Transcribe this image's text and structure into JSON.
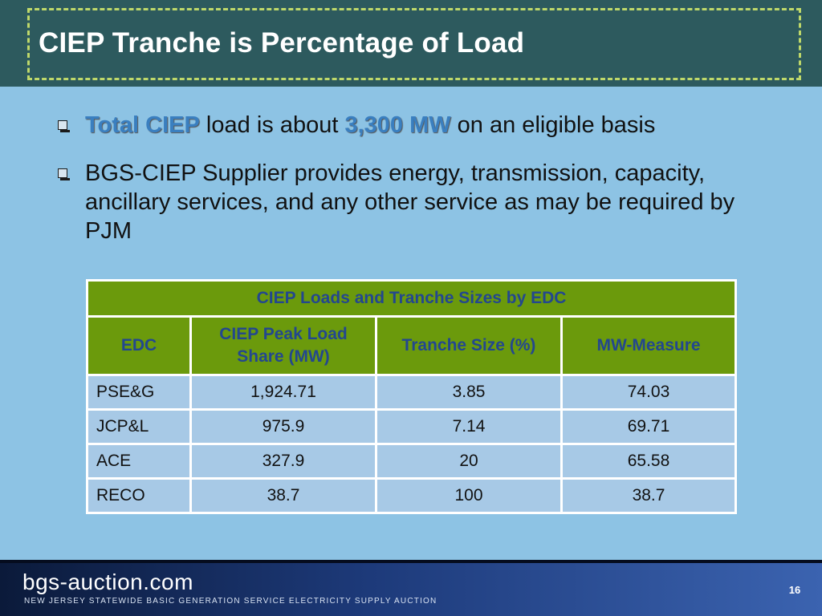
{
  "slide": {
    "title": "CIEP Tranche is Percentage of Load",
    "bullet1": {
      "highlight1": "Total CIEP",
      "text1": " load is about ",
      "highlight2": "3,300 MW",
      "text2": " on an eligible basis"
    },
    "bullet2": "BGS-CIEP Supplier provides energy, transmission, capacity, ancillary services, and any other service as may be required by PJM",
    "table": {
      "caption": "CIEP Loads and Tranche Sizes by EDC",
      "headers": [
        "EDC",
        "CIEP Peak Load Share (MW)",
        "Tranche Size (%)",
        "MW-Measure"
      ],
      "rows": [
        [
          "PSE&G",
          "1,924.71",
          "3.85",
          "74.03"
        ],
        [
          "JCP&L",
          "975.9",
          "7.14",
          "69.71"
        ],
        [
          "ACE",
          "327.9",
          "20",
          "65.58"
        ],
        [
          "RECO",
          "38.7",
          "100",
          "38.7"
        ]
      ]
    }
  },
  "footer": {
    "brand": "bgs-auction.com",
    "tagline": "NEW JERSEY STATEWIDE BASIC GENERATION SERVICE ELECTRICITY SUPPLY AUCTION",
    "page_number": "16"
  },
  "colors": {
    "header_bg": "#2d5a5e",
    "header_dash": "#bfd86a",
    "slide_bg": "#8dc3e4",
    "table_header_bg": "#6b9a0c",
    "table_header_text": "#23478f",
    "table_cell_bg": "#a7c9e6",
    "highlight_text": "#3a7fc0"
  }
}
